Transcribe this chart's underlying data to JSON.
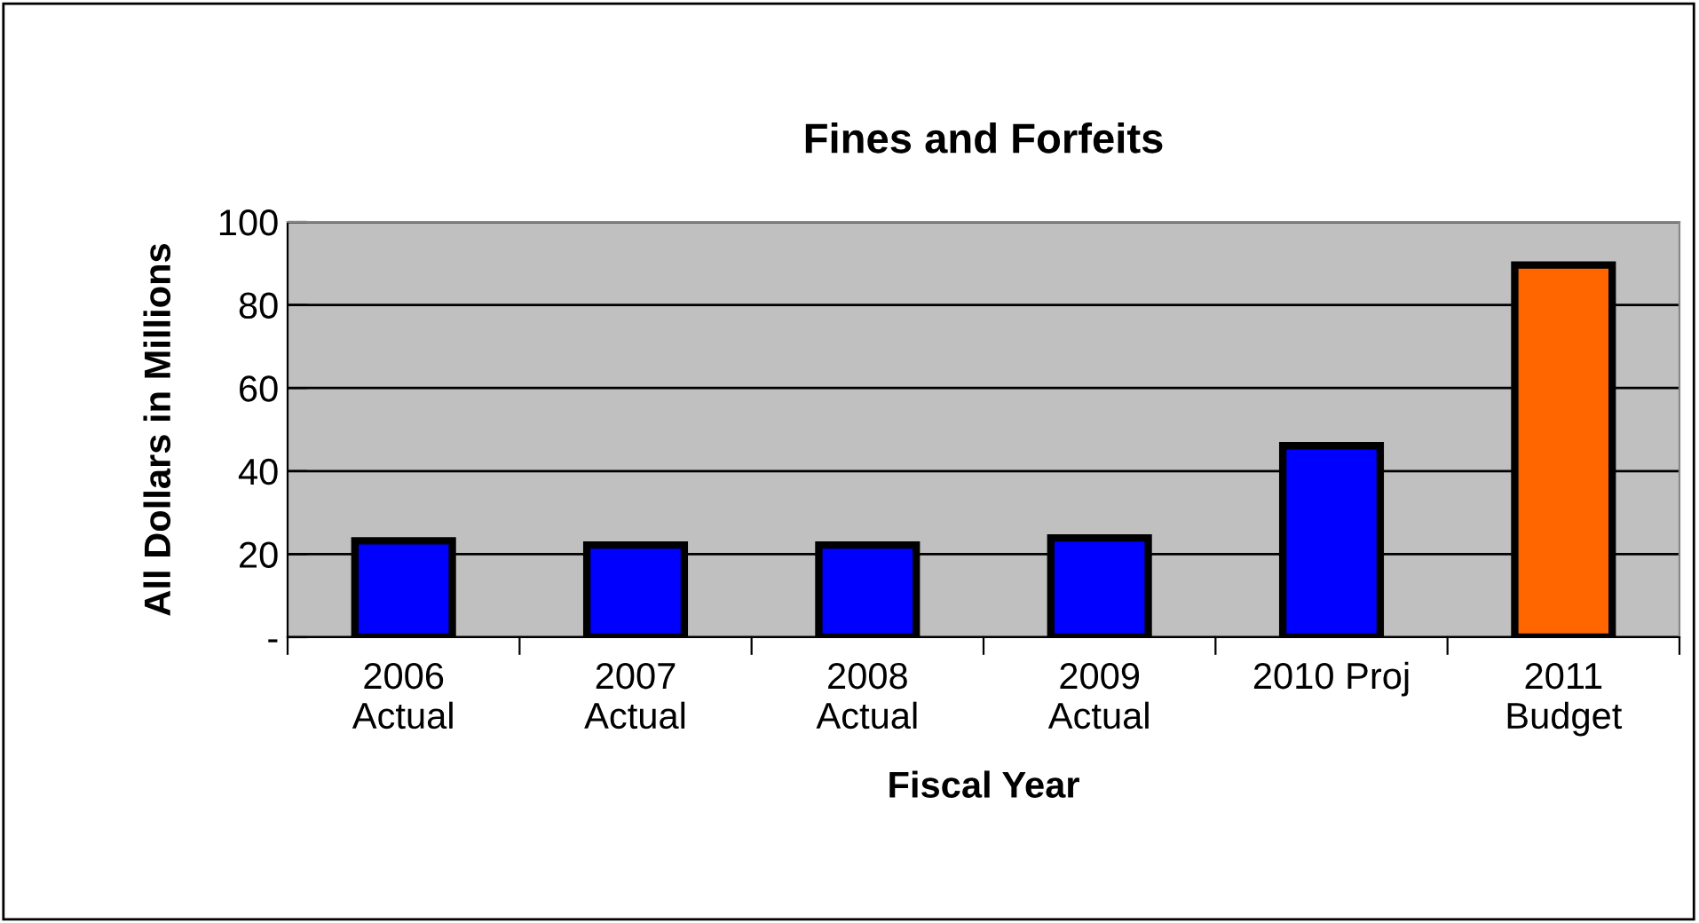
{
  "chart_data": {
    "type": "bar",
    "title": "Fines and Forfeits",
    "xlabel": "Fiscal Year",
    "ylabel": "All Dollars in Millions",
    "categories": [
      "2006\nActual",
      "2007\nActual",
      "2008\nActual",
      "2009\nActual",
      "2010 Proj",
      "2011\nBudget"
    ],
    "values": [
      23.2,
      22.2,
      22.2,
      23.9,
      46.1,
      89.6
    ],
    "colors": [
      "#0000ff",
      "#0000ff",
      "#0000ff",
      "#0000ff",
      "#0000ff",
      "#ff6600"
    ],
    "ylim": [
      0,
      100
    ],
    "yticks": [
      {
        "value": 0,
        "label": "-"
      },
      20,
      40,
      60,
      80,
      100
    ],
    "grid": "y"
  }
}
